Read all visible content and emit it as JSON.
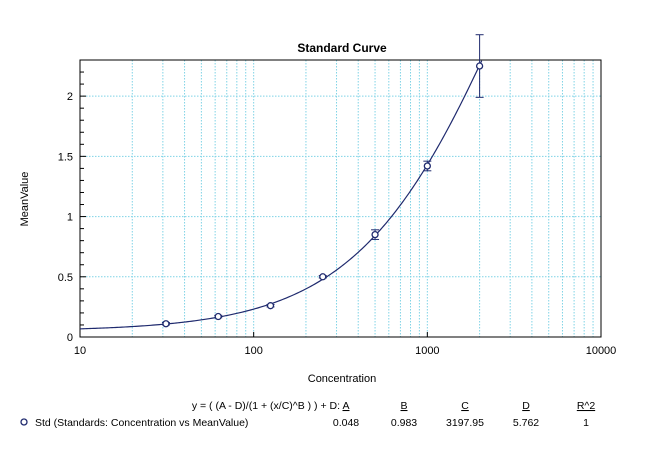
{
  "chart_data": {
    "type": "scatter",
    "title": "Standard Curve",
    "xlabel": "Concentration",
    "ylabel": "MeanValue",
    "x_scale": "log",
    "xlim": [
      10,
      10000
    ],
    "ylim": [
      0,
      2.3
    ],
    "x_ticks": [
      "10",
      "100",
      "1000",
      "10000"
    ],
    "y_ticks": [
      "0",
      "0.5",
      "1",
      "1.5",
      "2"
    ],
    "grid": true,
    "colors": {
      "series": "#1f2a6e",
      "grid": "#7fd3e6"
    },
    "series": [
      {
        "name": "Std (Standards: Concentration vs MeanValue)",
        "marker": "open-circle",
        "points": [
          {
            "x": 31.25,
            "y": 0.11,
            "err": 0.01
          },
          {
            "x": 62.5,
            "y": 0.17,
            "err": 0.01
          },
          {
            "x": 125,
            "y": 0.26,
            "err": 0.01
          },
          {
            "x": 250,
            "y": 0.5,
            "err": 0.01
          },
          {
            "x": 500,
            "y": 0.85,
            "err": 0.04
          },
          {
            "x": 1000,
            "y": 1.42,
            "err": 0.04
          },
          {
            "x": 2000,
            "y": 2.25,
            "err": 0.26
          }
        ]
      }
    ],
    "fit": {
      "equation": "y = ( (A - D)/(1 + (x/C)^B ) ) + D:",
      "headers": [
        "A",
        "B",
        "C",
        "D",
        "R^2"
      ],
      "values": [
        "0.048",
        "0.983",
        "3197.95",
        "5.762",
        "1"
      ],
      "params": {
        "A": 0.048,
        "B": 0.983,
        "C": 3197.95,
        "D": 5.762
      }
    }
  }
}
